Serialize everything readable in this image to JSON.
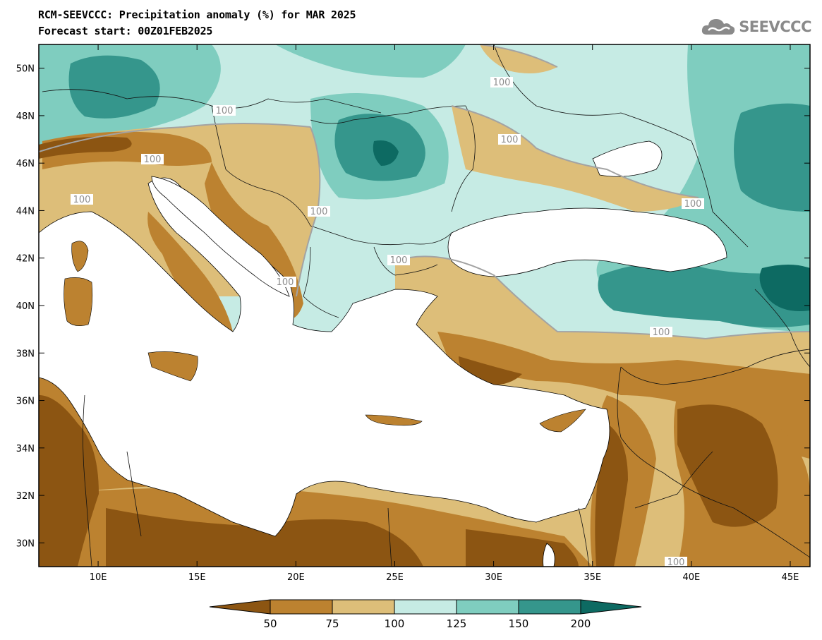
{
  "header": {
    "title_line1": "RCM-SEEVCCC: Precipitation anomaly (%) for MAR 2025",
    "title_line2": "Forecast start: 00Z01FEB2025",
    "logo_text": "SEEVCCC",
    "logo_icon": "cloud-icon"
  },
  "map": {
    "lon_ticks": [
      "10E",
      "15E",
      "20E",
      "25E",
      "30E",
      "35E",
      "40E",
      "45E"
    ],
    "lat_ticks": [
      "30N",
      "32N",
      "34N",
      "36N",
      "38N",
      "40N",
      "42N",
      "44N",
      "46N",
      "48N",
      "50N"
    ],
    "contour_labels": [
      "100",
      "100",
      "100",
      "100",
      "100",
      "100",
      "100",
      "100",
      "100",
      "100",
      "100"
    ],
    "sea_color": "#ffffff",
    "frame_color": "#000000"
  },
  "colorbar": {
    "tick_labels": [
      "50",
      "75",
      "100",
      "125",
      "150",
      "200"
    ],
    "colors": [
      "#8c5512",
      "#bc8230",
      "#ddbe79",
      "#c6ebe4",
      "#7fcdbf",
      "#35968c",
      "#0d6a62"
    ]
  }
}
